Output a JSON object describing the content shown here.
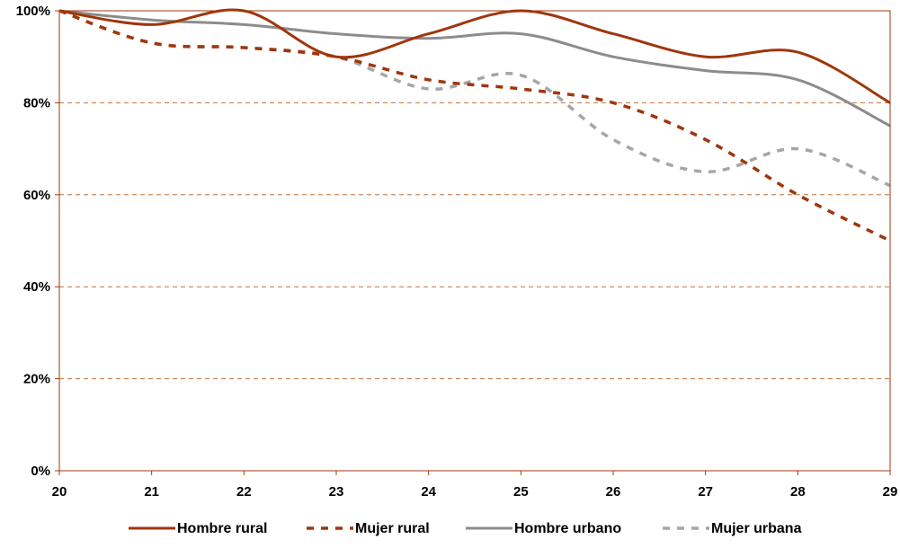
{
  "chart_data": {
    "type": "line",
    "title": "",
    "xlabel": "",
    "ylabel": "",
    "x": [
      20,
      21,
      22,
      23,
      24,
      25,
      26,
      27,
      28,
      29
    ],
    "xlim": [
      20,
      29
    ],
    "ylim": [
      0,
      100
    ],
    "yticks": [
      0,
      20,
      40,
      60,
      80,
      100
    ],
    "ytick_labels": [
      "0%",
      "20%",
      "40%",
      "60%",
      "80%",
      "100%"
    ],
    "xtick_labels": [
      "20",
      "21",
      "22",
      "23",
      "24",
      "25",
      "26",
      "27",
      "28",
      "29"
    ],
    "grid": "horizontal dashed",
    "legend_position": "bottom",
    "series": [
      {
        "name": "Hombre rural",
        "values": [
          100,
          97,
          100,
          90,
          95,
          100,
          95,
          90,
          91,
          80
        ],
        "color": "#a0360c",
        "dash": "solid"
      },
      {
        "name": "Mujer rural",
        "values": [
          100,
          93,
          92,
          90,
          85,
          83,
          80,
          72,
          60,
          50
        ],
        "color": "#a0360c",
        "dash": "dashed"
      },
      {
        "name": "Hombre urbano",
        "values": [
          100,
          98,
          97,
          95,
          94,
          95,
          90,
          87,
          85,
          75
        ],
        "color": "#8c8c8c",
        "dash": "solid"
      },
      {
        "name": "Mujer urbana",
        "values": [
          100,
          93,
          92,
          90,
          83,
          86,
          72,
          65,
          70,
          62
        ],
        "color": "#a6a6a6",
        "dash": "dashed"
      }
    ],
    "colors": {
      "grid": "#c0703a",
      "axis": "#a0360c"
    }
  }
}
